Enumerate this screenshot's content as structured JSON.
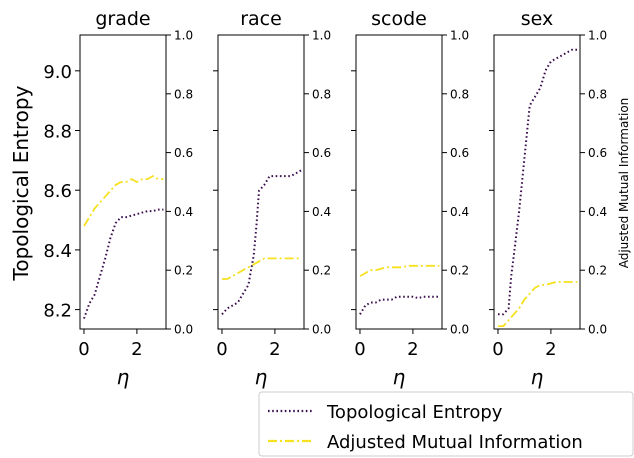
{
  "figure": {
    "ylabel_left": "Topological Entropy",
    "ylabel_right": "Adjusted Mutual Information",
    "xlabel": "η",
    "colors": {
      "te": "#3b0f4e",
      "ami": "#f5e11f",
      "axes": "#000000"
    },
    "legend": {
      "placement": "bottom-right, below panels",
      "entries": [
        {
          "label": "Topological Entropy",
          "style": "dotted",
          "color": "#3b0f4e"
        },
        {
          "label": "Adjusted Mutual Information",
          "style": "dashdot",
          "color": "#f5e11f"
        }
      ]
    }
  },
  "chart_data": [
    {
      "type": "line",
      "title": "grade",
      "x_ticks": [
        0,
        2
      ],
      "y_left_ticks": [
        "8.2",
        "8.4",
        "8.6",
        "8.8",
        "9.0"
      ],
      "y_right_ticks": [
        "0.0",
        "0.2",
        "0.4",
        "0.6",
        "0.8",
        "1.0"
      ],
      "show_left_labels": true,
      "show_right_labels": true,
      "xlim": [
        -0.15,
        3.1
      ],
      "ylim_left": [
        8.135,
        9.12
      ],
      "ylim_right": [
        0,
        1
      ],
      "series": [
        {
          "name": "Topological Entropy",
          "axis": "left",
          "x": [
            0,
            0.2,
            0.4,
            0.6,
            0.8,
            1.0,
            1.2,
            1.4,
            1.6,
            1.8,
            2.0,
            2.2,
            2.4,
            2.6,
            2.8,
            3.0
          ],
          "y": [
            8.17,
            8.22,
            8.25,
            8.31,
            8.37,
            8.44,
            8.49,
            8.51,
            8.51,
            8.515,
            8.52,
            8.525,
            8.53,
            8.53,
            8.535,
            8.535
          ]
        },
        {
          "name": "Adjusted Mutual Information",
          "axis": "right",
          "x": [
            0,
            0.2,
            0.4,
            0.6,
            0.8,
            1.0,
            1.2,
            1.4,
            1.6,
            1.8,
            2.0,
            2.2,
            2.4,
            2.6,
            2.8,
            3.0
          ],
          "y": [
            0.35,
            0.38,
            0.41,
            0.43,
            0.45,
            0.47,
            0.49,
            0.5,
            0.5,
            0.51,
            0.5,
            0.51,
            0.51,
            0.52,
            0.51,
            0.51
          ]
        }
      ]
    },
    {
      "type": "line",
      "title": "race",
      "x_ticks": [
        0,
        2
      ],
      "y_left_ticks": [
        "8.2",
        "8.4",
        "8.6",
        "8.8",
        "9.0"
      ],
      "y_right_ticks": [
        "0.0",
        "0.2",
        "0.4",
        "0.6",
        "0.8",
        "1.0"
      ],
      "show_left_labels": false,
      "show_right_labels": true,
      "xlim": [
        -0.15,
        3.1
      ],
      "ylim_left": [
        0,
        1
      ],
      "ylim_right": [
        0,
        1
      ],
      "series": [
        {
          "name": "Topological Entropy",
          "axis": "right",
          "x": [
            0,
            0.2,
            0.4,
            0.6,
            0.8,
            1.0,
            1.2,
            1.3,
            1.4,
            1.6,
            1.8,
            2.0,
            2.2,
            2.4,
            2.6,
            2.8,
            3.0
          ],
          "y": [
            0.05,
            0.07,
            0.08,
            0.09,
            0.12,
            0.15,
            0.25,
            0.35,
            0.47,
            0.49,
            0.52,
            0.52,
            0.52,
            0.52,
            0.52,
            0.53,
            0.54
          ]
        },
        {
          "name": "Adjusted Mutual Information",
          "axis": "right",
          "x": [
            0,
            0.2,
            0.4,
            0.6,
            0.8,
            1.0,
            1.2,
            1.4,
            1.6,
            1.8,
            2.0,
            2.2,
            2.4,
            2.6,
            2.8,
            3.0
          ],
          "y": [
            0.17,
            0.17,
            0.18,
            0.19,
            0.2,
            0.21,
            0.22,
            0.23,
            0.24,
            0.24,
            0.24,
            0.24,
            0.24,
            0.24,
            0.24,
            0.24
          ]
        }
      ]
    },
    {
      "type": "line",
      "title": "scode",
      "x_ticks": [
        0,
        2
      ],
      "y_left_ticks": [
        "8.2",
        "8.4",
        "8.6",
        "8.8",
        "9.0"
      ],
      "y_right_ticks": [
        "0.0",
        "0.2",
        "0.4",
        "0.6",
        "0.8",
        "1.0"
      ],
      "show_left_labels": false,
      "show_right_labels": true,
      "xlim": [
        -0.15,
        3.1
      ],
      "ylim_left": [
        0,
        1
      ],
      "ylim_right": [
        0,
        1
      ],
      "series": [
        {
          "name": "Topological Entropy",
          "axis": "right",
          "x": [
            0,
            0.2,
            0.4,
            0.6,
            0.8,
            1.0,
            1.2,
            1.4,
            1.6,
            1.8,
            2.0,
            2.2,
            2.4,
            2.6,
            2.8,
            3.0
          ],
          "y": [
            0.05,
            0.08,
            0.09,
            0.09,
            0.1,
            0.1,
            0.1,
            0.11,
            0.11,
            0.11,
            0.11,
            0.105,
            0.11,
            0.11,
            0.11,
            0.11
          ]
        },
        {
          "name": "Adjusted Mutual Information",
          "axis": "right",
          "x": [
            0,
            0.2,
            0.4,
            0.6,
            0.8,
            1.0,
            1.2,
            1.4,
            1.6,
            1.8,
            2.0,
            2.2,
            2.4,
            2.6,
            2.8,
            3.0
          ],
          "y": [
            0.18,
            0.19,
            0.2,
            0.2,
            0.205,
            0.21,
            0.21,
            0.21,
            0.21,
            0.215,
            0.215,
            0.215,
            0.215,
            0.215,
            0.215,
            0.215
          ]
        }
      ]
    },
    {
      "type": "line",
      "title": "sex",
      "x_ticks": [
        0,
        2
      ],
      "y_left_ticks": [
        "8.2",
        "8.4",
        "8.6",
        "8.8",
        "9.0"
      ],
      "y_right_ticks": [
        "0.0",
        "0.2",
        "0.4",
        "0.6",
        "0.8",
        "1.0"
      ],
      "show_left_labels": false,
      "show_right_labels": true,
      "xlim": [
        -0.15,
        3.1
      ],
      "ylim_left": [
        0,
        1
      ],
      "ylim_right": [
        0,
        1
      ],
      "series": [
        {
          "name": "Topological Entropy",
          "axis": "right",
          "x": [
            0,
            0.2,
            0.4,
            0.5,
            0.6,
            0.8,
            1.0,
            1.2,
            1.4,
            1.6,
            1.8,
            2.0,
            2.2,
            2.4,
            2.6,
            2.8,
            3.0
          ],
          "y": [
            0.05,
            0.05,
            0.07,
            0.18,
            0.25,
            0.4,
            0.58,
            0.76,
            0.79,
            0.82,
            0.88,
            0.91,
            0.92,
            0.93,
            0.94,
            0.95,
            0.95
          ]
        },
        {
          "name": "Adjusted Mutual Information",
          "axis": "right",
          "x": [
            0,
            0.2,
            0.4,
            0.6,
            0.8,
            1.0,
            1.2,
            1.4,
            1.6,
            1.8,
            2.0,
            2.2,
            2.4,
            2.6,
            2.8,
            3.0
          ],
          "y": [
            0.01,
            0.01,
            0.03,
            0.05,
            0.07,
            0.1,
            0.12,
            0.14,
            0.15,
            0.15,
            0.155,
            0.16,
            0.16,
            0.16,
            0.16,
            0.16
          ]
        }
      ]
    }
  ]
}
